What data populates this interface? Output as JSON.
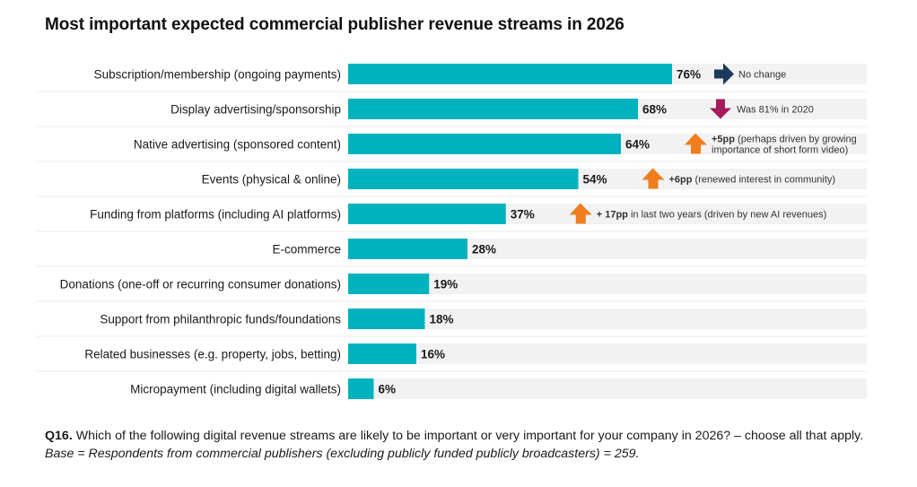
{
  "title": "Most important expected commercial publisher revenue streams in 2026",
  "colors": {
    "bar": "#00b2bd",
    "track": "#f2f2f2",
    "arrow_neutral": "#1b3a5c",
    "arrow_down": "#a51d5c",
    "arrow_up": "#f07d1e"
  },
  "chart_data": {
    "type": "bar",
    "orientation": "horizontal",
    "xlim": [
      0,
      100
    ],
    "grid": false,
    "categories": [
      "Subscription/membership (ongoing payments)",
      "Display advertising/sponsorship",
      "Native advertising (sponsored content)",
      "Events (physical & online)",
      "Funding from platforms (including AI platforms)",
      "E-commerce",
      "Donations (one-off or recurring consumer donations)",
      "Support from philanthropic funds/foundations",
      "Related businesses (e.g. property, jobs, betting)",
      "Micropayment (including digital wallets)"
    ],
    "values": [
      76,
      68,
      64,
      54,
      37,
      28,
      19,
      18,
      16,
      6
    ],
    "value_labels": [
      "76%",
      "68%",
      "64%",
      "54%",
      "37%",
      "28%",
      "19%",
      "18%",
      "16%",
      "6%"
    ],
    "annotations": [
      {
        "row": 0,
        "arrow": "right",
        "bold": "",
        "lines": [
          "No change"
        ]
      },
      {
        "row": 1,
        "arrow": "down",
        "bold": "",
        "lines": [
          "Was 81% in 2020"
        ]
      },
      {
        "row": 2,
        "arrow": "up",
        "bold": "+5pp",
        "lines": [
          " (perhaps driven by growing",
          "importance of short form video)"
        ]
      },
      {
        "row": 3,
        "arrow": "up",
        "bold": "+6pp",
        "lines": [
          " (renewed interest in community)"
        ]
      },
      {
        "row": 4,
        "arrow": "up",
        "bold": "+ 17pp",
        "lines": [
          " in last two years (driven by new AI revenues)"
        ]
      }
    ]
  },
  "footnote": {
    "q_label": "Q16.",
    "question": " Which of the following digital revenue streams are likely to be important or very important for your company in 2026? – choose all that apply. ",
    "base": "Base = Respondents from commercial publishers (excluding publicly funded publicly broadcasters) = 259."
  }
}
